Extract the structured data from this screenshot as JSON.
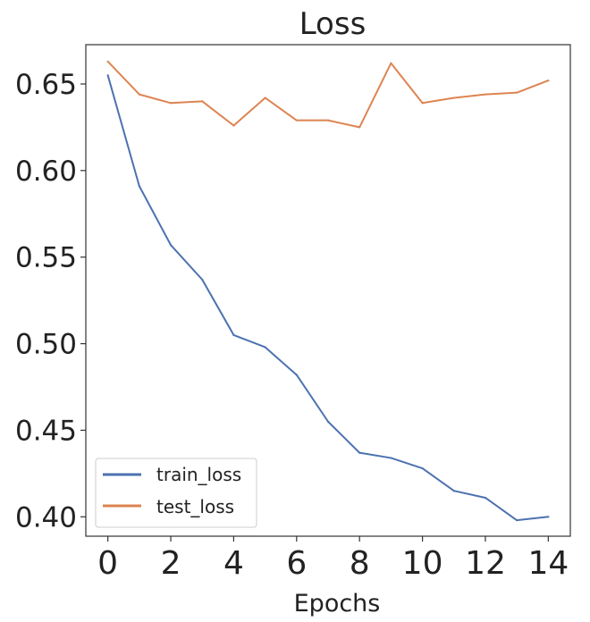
{
  "chart_data": {
    "type": "line",
    "title": "Loss",
    "xlabel": "Epochs",
    "ylabel": "",
    "x": [
      0,
      1,
      2,
      3,
      4,
      5,
      6,
      7,
      8,
      9,
      10,
      11,
      12,
      13,
      14
    ],
    "xticks": [
      0,
      2,
      4,
      6,
      8,
      10,
      12,
      14
    ],
    "xtick_labels": [
      "0",
      "2",
      "4",
      "6",
      "8",
      "10",
      "12",
      "14"
    ],
    "yticks": [
      0.4,
      0.45,
      0.5,
      0.55,
      0.6,
      0.65
    ],
    "ytick_labels": [
      "0.40",
      "0.45",
      "0.50",
      "0.55",
      "0.60",
      "0.65"
    ],
    "xlim": [
      -0.7,
      14.7
    ],
    "ylim": [
      0.3888,
      0.6727
    ],
    "grid": false,
    "legend_position": "bottom-left",
    "series": [
      {
        "name": "train_loss",
        "color": "#4c72b0",
        "values": [
          0.655,
          0.591,
          0.557,
          0.537,
          0.505,
          0.498,
          0.482,
          0.455,
          0.437,
          0.434,
          0.428,
          0.415,
          0.411,
          0.398,
          0.4
        ]
      },
      {
        "name": "test_loss",
        "color": "#dd8452",
        "values": [
          0.663,
          0.644,
          0.639,
          0.64,
          0.626,
          0.642,
          0.629,
          0.629,
          0.625,
          0.662,
          0.639,
          0.642,
          0.644,
          0.645,
          0.652
        ]
      }
    ]
  }
}
